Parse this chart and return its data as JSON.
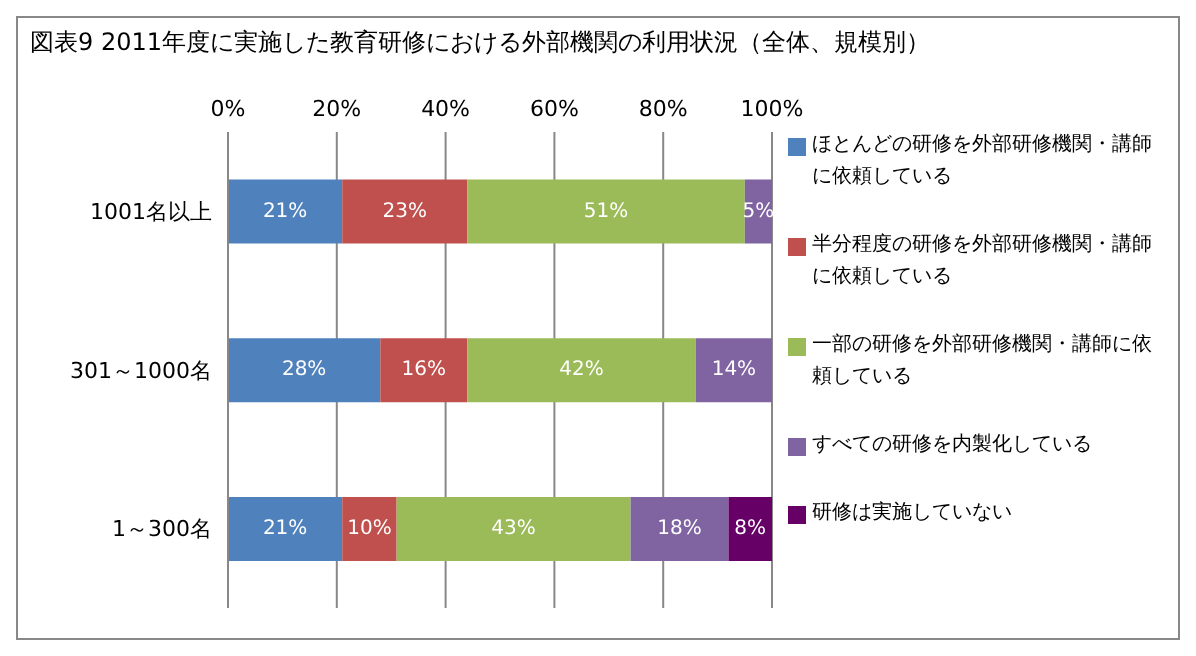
{
  "chart_data": {
    "type": "bar",
    "orientation": "horizontal",
    "stacked": true,
    "title": "図表9  2011年度に実施した教育研修における外部機関の利用状況（全体、規模別）",
    "categories": [
      "1001名以上",
      "301～1000名",
      "1～300名"
    ],
    "series": [
      {
        "name": "ほとんどの研修を外部研修機関・講師に依頼している",
        "color": "#4f81bd",
        "values": [
          21,
          28,
          21
        ],
        "value_labels": [
          "21%",
          "28%",
          "21%"
        ]
      },
      {
        "name": "半分程度の研修を外部研修機関・講師に依頼している",
        "color": "#c0504d",
        "values": [
          23,
          16,
          10
        ],
        "value_labels": [
          "23%",
          "16%",
          "10%"
        ]
      },
      {
        "name": "一部の研修を外部研修機関・講師に依頼している",
        "color": "#9bbb59",
        "values": [
          51,
          42,
          43
        ],
        "value_labels": [
          "51%",
          "42%",
          "43%"
        ]
      },
      {
        "name": "すべての研修を内製化している",
        "color": "#8064a2",
        "values": [
          5,
          14,
          18
        ],
        "value_labels": [
          "5%",
          "14%",
          "18%"
        ]
      },
      {
        "name": "研修は実施していない",
        "color": "#660066",
        "values": [
          null,
          null,
          8
        ],
        "value_labels": [
          null,
          null,
          "8%"
        ]
      }
    ],
    "xlim": [
      0,
      100
    ],
    "xticks": [
      {
        "value": 0,
        "label": "0%"
      },
      {
        "value": 20,
        "label": "20%"
      },
      {
        "value": 40,
        "label": "40%"
      },
      {
        "value": 60,
        "label": "60%"
      },
      {
        "value": 80,
        "label": "80%"
      },
      {
        "value": 100,
        "label": "100%"
      }
    ],
    "grid": "x",
    "legend": "right"
  }
}
